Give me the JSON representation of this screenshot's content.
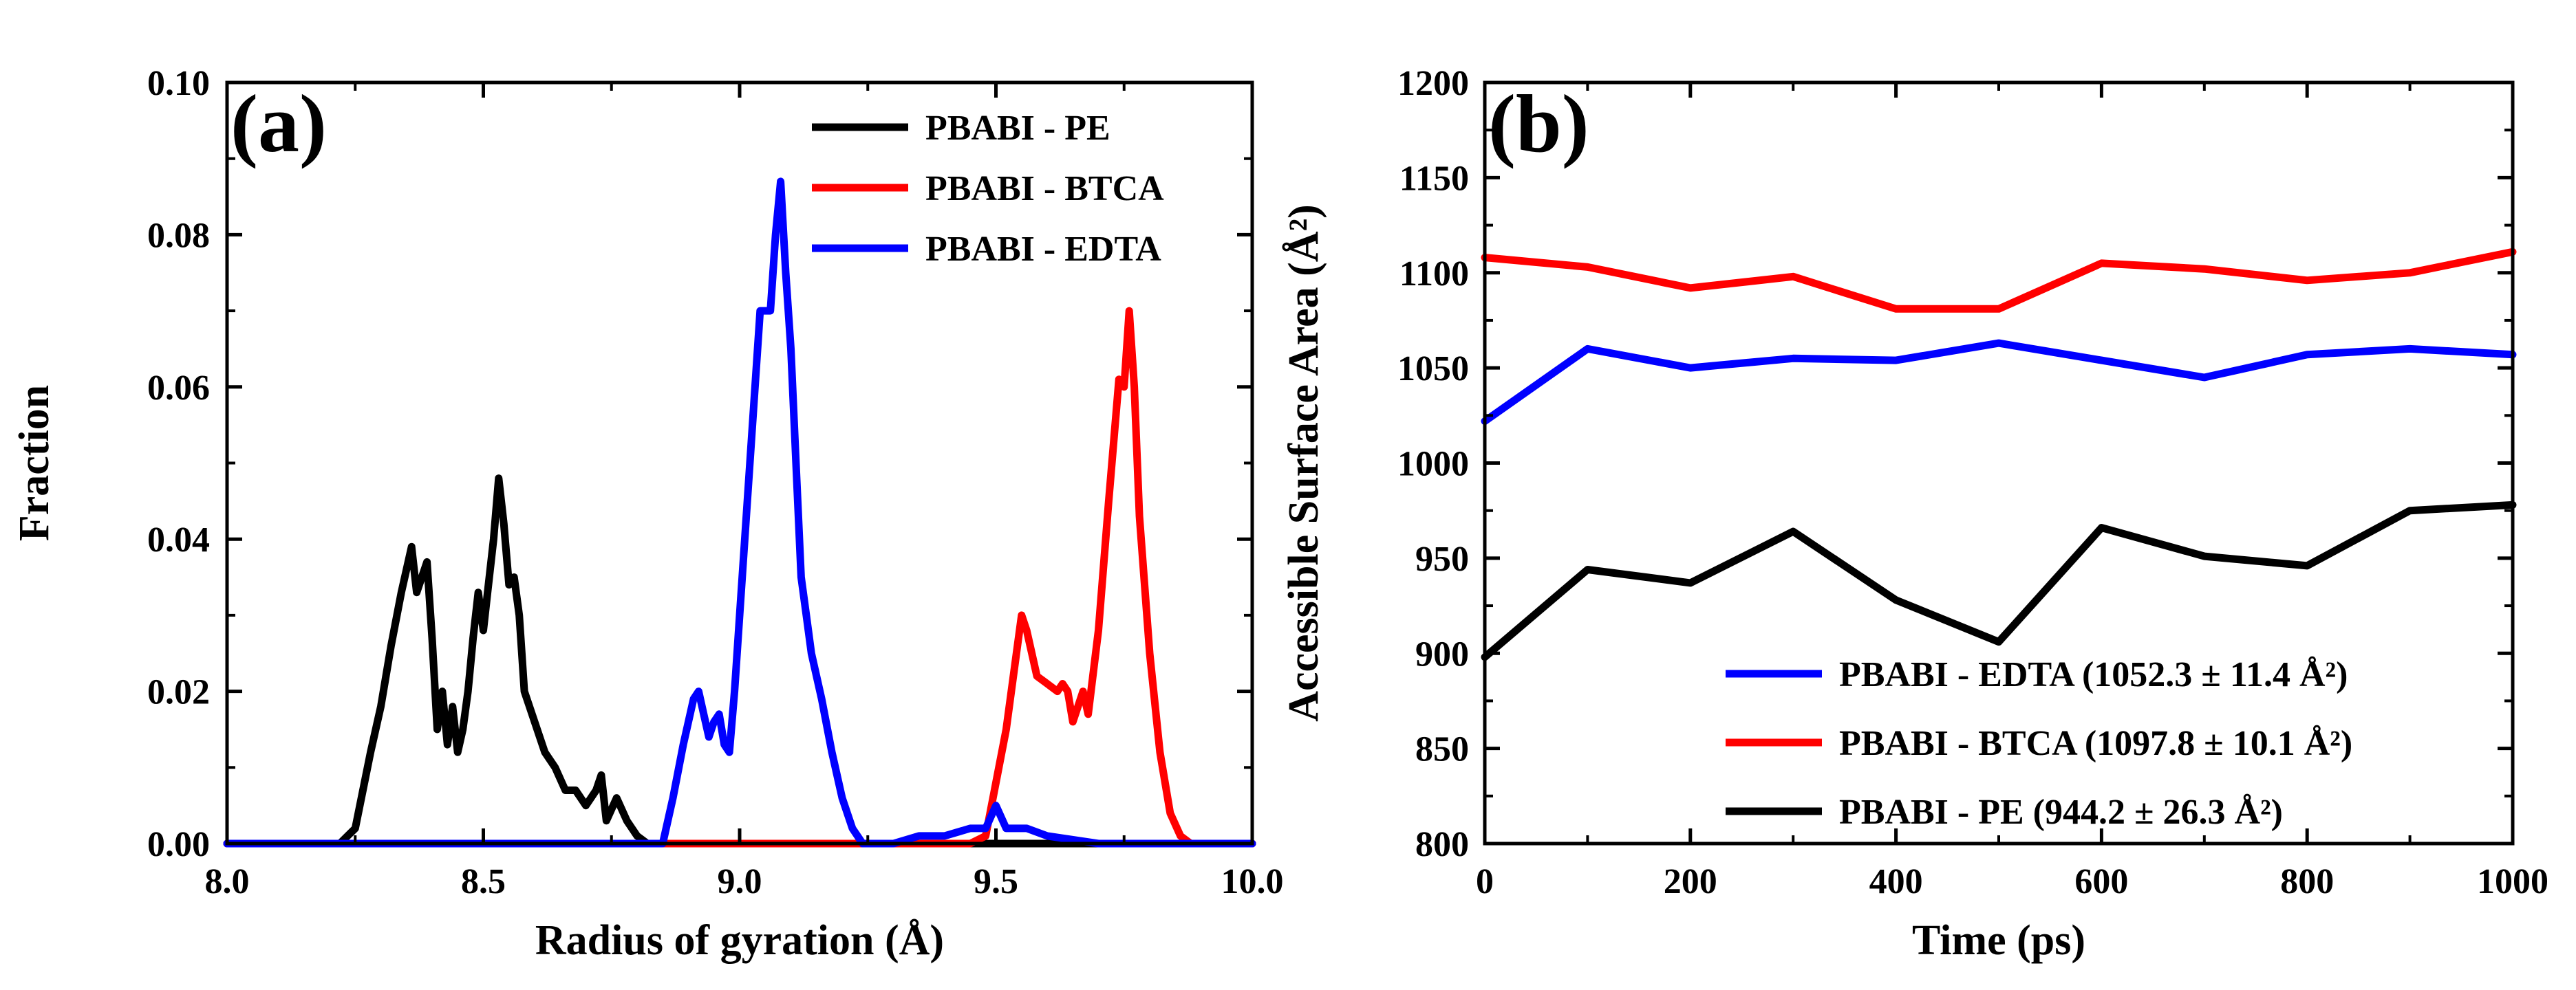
{
  "chart_data": [
    {
      "type": "line",
      "panel_label": "(a)",
      "xlabel": "Radius of gyration (Å)",
      "ylabel": "Fraction",
      "xlim": [
        8.0,
        10.0
      ],
      "ylim": [
        0.0,
        0.1
      ],
      "xticks": [
        "8.0",
        "8.5",
        "9.0",
        "9.5",
        "10.0"
      ],
      "yticks": [
        "0.00",
        "0.02",
        "0.04",
        "0.06",
        "0.08",
        "0.10"
      ],
      "legend_position": "top-right",
      "series": [
        {
          "name": "PBABI - PE",
          "color": "#000000",
          "x": [
            8.0,
            8.22,
            8.25,
            8.28,
            8.3,
            8.32,
            8.34,
            8.36,
            8.37,
            8.38,
            8.39,
            8.4,
            8.41,
            8.42,
            8.43,
            8.44,
            8.45,
            8.46,
            8.47,
            8.48,
            8.49,
            8.5,
            8.51,
            8.52,
            8.53,
            8.54,
            8.55,
            8.56,
            8.57,
            8.58,
            8.6,
            8.62,
            8.64,
            8.66,
            8.68,
            8.7,
            8.72,
            8.73,
            8.74,
            8.76,
            8.78,
            8.8,
            8.82,
            10.0
          ],
          "y": [
            0.0,
            0.0,
            0.002,
            0.012,
            0.018,
            0.026,
            0.033,
            0.039,
            0.033,
            0.035,
            0.037,
            0.027,
            0.015,
            0.02,
            0.013,
            0.018,
            0.012,
            0.015,
            0.02,
            0.027,
            0.033,
            0.028,
            0.034,
            0.04,
            0.048,
            0.042,
            0.034,
            0.035,
            0.03,
            0.02,
            0.016,
            0.012,
            0.01,
            0.007,
            0.007,
            0.005,
            0.007,
            0.009,
            0.003,
            0.006,
            0.003,
            0.001,
            0.0,
            0.0
          ]
        },
        {
          "name": "PBABI - BTCA",
          "color": "#ff0000",
          "x": [
            8.0,
            9.45,
            9.48,
            9.5,
            9.52,
            9.54,
            9.55,
            9.56,
            9.58,
            9.6,
            9.62,
            9.63,
            9.64,
            9.65,
            9.66,
            9.67,
            9.68,
            9.7,
            9.72,
            9.74,
            9.75,
            9.76,
            9.77,
            9.78,
            9.8,
            9.82,
            9.84,
            9.86,
            9.88,
            10.0
          ],
          "y": [
            0.0,
            0.0,
            0.001,
            0.008,
            0.015,
            0.025,
            0.03,
            0.028,
            0.022,
            0.021,
            0.02,
            0.021,
            0.02,
            0.016,
            0.018,
            0.02,
            0.017,
            0.028,
            0.045,
            0.061,
            0.06,
            0.07,
            0.06,
            0.043,
            0.025,
            0.012,
            0.004,
            0.001,
            0.0,
            0.0
          ]
        },
        {
          "name": "PBABI - EDTA",
          "color": "#0000ff",
          "x": [
            8.0,
            8.85,
            8.87,
            8.89,
            8.91,
            8.92,
            8.93,
            8.94,
            8.95,
            8.96,
            8.97,
            8.98,
            8.99,
            9.0,
            9.02,
            9.04,
            9.06,
            9.07,
            9.08,
            9.09,
            9.1,
            9.11,
            9.12,
            9.13,
            9.14,
            9.16,
            9.18,
            9.2,
            9.22,
            9.24,
            9.26,
            9.3,
            9.35,
            9.4,
            9.45,
            9.48,
            9.5,
            9.52,
            9.56,
            9.6,
            9.7,
            10.0
          ],
          "y": [
            0.0,
            0.0,
            0.006,
            0.013,
            0.019,
            0.02,
            0.017,
            0.014,
            0.016,
            0.017,
            0.013,
            0.012,
            0.02,
            0.03,
            0.05,
            0.07,
            0.07,
            0.08,
            0.087,
            0.075,
            0.065,
            0.05,
            0.035,
            0.03,
            0.025,
            0.019,
            0.012,
            0.006,
            0.002,
            0.0,
            0.0,
            0.0,
            0.001,
            0.001,
            0.002,
            0.002,
            0.005,
            0.002,
            0.002,
            0.001,
            0.0,
            0.0
          ]
        }
      ]
    },
    {
      "type": "line",
      "panel_label": "(b)",
      "xlabel": "Time (ps)",
      "ylabel": "Accessible Surface Area (Å²)",
      "xlim": [
        0,
        1000
      ],
      "ylim": [
        800,
        1200
      ],
      "xticks": [
        "0",
        "200",
        "400",
        "600",
        "800",
        "1000"
      ],
      "yticks": [
        "800",
        "850",
        "900",
        "950",
        "1000",
        "1050",
        "1100",
        "1150",
        "1200"
      ],
      "legend_position": "bottom-right",
      "x": [
        0,
        100,
        200,
        300,
        400,
        500,
        600,
        700,
        800,
        900,
        1000
      ],
      "series": [
        {
          "name": "PBABI - EDTA (1052.3 ± 11.4 Å²)",
          "color": "#0000ff",
          "values": [
            1022,
            1060,
            1050,
            1055,
            1054,
            1063,
            1054,
            1045,
            1057,
            1060,
            1057
          ]
        },
        {
          "name": "PBABI - BTCA (1097.8 ± 10.1 Å²)",
          "color": "#ff0000",
          "values": [
            1108,
            1103,
            1092,
            1098,
            1081,
            1081,
            1105,
            1102,
            1096,
            1100,
            1111
          ]
        },
        {
          "name": "PBABI - PE (944.2 ± 26.3 Å²)",
          "color": "#000000",
          "values": [
            898,
            944,
            937,
            964,
            928,
            906,
            966,
            951,
            946,
            975,
            978
          ]
        }
      ]
    }
  ]
}
